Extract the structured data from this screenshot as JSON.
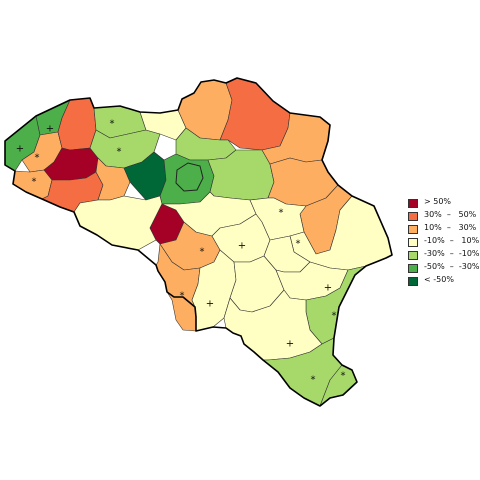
{
  "colors": {
    "gt50": "#a50026",
    "p30_50": "#f46d43",
    "p10_30": "#fdae61",
    "m10_10": "#ffffc4",
    "m30_m10": "#a6d96a",
    "m50_m30": "#4daf4a",
    "lt50": "#006837"
  },
  "legend": {
    "items": [
      {
        "key": "gt50",
        "label": "> 50%"
      },
      {
        "key": "p30_50",
        "label": "30%  –   50%"
      },
      {
        "key": "p10_30",
        "label": "10%  –   30%"
      },
      {
        "key": "m10_10",
        "label": "-10%  –   10%"
      },
      {
        "key": "m30_m10",
        "label": "-30%  –  -10%"
      },
      {
        "key": "m50_m30",
        "label": "-50%  –  -30%"
      },
      {
        "key": "lt50",
        "label": "< -50%"
      }
    ]
  },
  "regions": [
    {
      "id": "west-coast",
      "cls": "m50_m30",
      "mark": "+"
    },
    {
      "id": "bruges-coast",
      "cls": "m50_m30",
      "mark": "+"
    },
    {
      "id": "ostend-hinterland",
      "cls": "p10_30",
      "mark": "*"
    },
    {
      "id": "ypres-west",
      "cls": "p10_30",
      "mark": "*"
    },
    {
      "id": "bruges",
      "cls": "p30_50",
      "mark": ""
    },
    {
      "id": "roeselare",
      "cls": "gt50",
      "mark": ""
    },
    {
      "id": "kortrijk",
      "cls": "p30_50",
      "mark": ""
    },
    {
      "id": "eeklo",
      "cls": "m30_m10",
      "mark": "*"
    },
    {
      "id": "ghent",
      "cls": "m30_m10",
      "mark": "*"
    },
    {
      "id": "oudenaarde",
      "cls": "p10_30",
      "mark": ""
    },
    {
      "id": "dendermonde",
      "cls": "m10_10",
      "mark": ""
    },
    {
      "id": "aalst",
      "cls": "lt50",
      "mark": ""
    },
    {
      "id": "antwerp",
      "cls": "p10_30",
      "mark": ""
    },
    {
      "id": "turnhout",
      "cls": "p30_50",
      "mark": ""
    },
    {
      "id": "mechelen",
      "cls": "m30_m10",
      "mark": ""
    },
    {
      "id": "brussels-ring",
      "cls": "m50_m30",
      "mark": ""
    },
    {
      "id": "leuven",
      "cls": "m30_m10",
      "mark": ""
    },
    {
      "id": "hasselt",
      "cls": "p10_30",
      "mark": ""
    },
    {
      "id": "maaseik",
      "cls": "p10_30",
      "mark": ""
    },
    {
      "id": "tongeren",
      "cls": "p10_30",
      "mark": ""
    },
    {
      "id": "hainaut-west",
      "cls": "m10_10",
      "mark": ""
    },
    {
      "id": "mons",
      "cls": "gt50",
      "mark": ""
    },
    {
      "id": "charleroi",
      "cls": "p10_30",
      "mark": "*"
    },
    {
      "id": "thuin",
      "cls": "p10_30",
      "mark": "*"
    },
    {
      "id": "walloon-brabant",
      "cls": "m10_10",
      "mark": ""
    },
    {
      "id": "namur",
      "cls": "m10_10",
      "mark": "+"
    },
    {
      "id": "philippeville",
      "cls": "m10_10",
      "mark": "+"
    },
    {
      "id": "dinant",
      "cls": "m10_10",
      "mark": ""
    },
    {
      "id": "liege",
      "cls": "m10_10",
      "mark": "*"
    },
    {
      "id": "verviers",
      "cls": "m10_10",
      "mark": ""
    },
    {
      "id": "huy",
      "cls": "m10_10",
      "mark": "*"
    },
    {
      "id": "marche",
      "cls": "m10_10",
      "mark": "+"
    },
    {
      "id": "bastogne",
      "cls": "m30_m10",
      "mark": "*"
    },
    {
      "id": "neufchateau",
      "cls": "m10_10",
      "mark": "+"
    },
    {
      "id": "virton",
      "cls": "m30_m10",
      "mark": "*"
    },
    {
      "id": "arlon",
      "cls": "m30_m10",
      "mark": "*"
    }
  ]
}
